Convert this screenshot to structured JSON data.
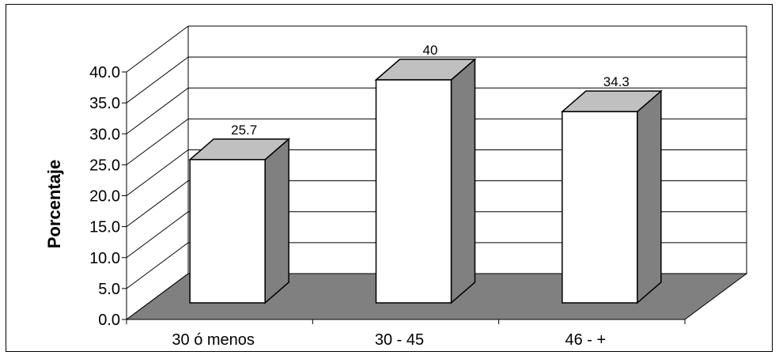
{
  "chart_data": {
    "type": "bar",
    "categories": [
      "30 ó menos",
      "30 - 45",
      "46 - +"
    ],
    "values": [
      25.7,
      40,
      34.3
    ],
    "value_labels": [
      "25.7",
      "40",
      "34.3"
    ],
    "ylabel": "Porcentaje",
    "ylim": [
      0,
      40
    ],
    "yticks": [
      "0.0",
      "5.0",
      "10.0",
      "15.0",
      "20.0",
      "25.0",
      "30.0",
      "35.0",
      "40.0"
    ],
    "grid": true,
    "legend": "none",
    "style": "3d",
    "colors": {
      "bar_front": "#ffffff",
      "bar_top": "#c0c0c0",
      "bar_side": "#808080",
      "floor": "#808080",
      "wall": "#ffffff",
      "gridline": "#000000"
    }
  }
}
